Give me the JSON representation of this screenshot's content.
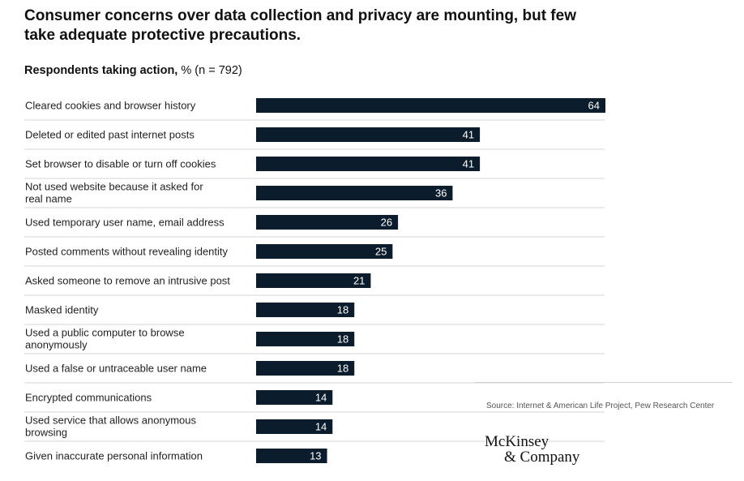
{
  "title": "Consumer concerns over data collection and privacy are mounting, but few take adequate protective precautions.",
  "subtitle_bold": "Respondents taking action,",
  "subtitle_rest": " % (n = 792)",
  "source": "Source: Internet & American Life Project, Pew Research Center",
  "logo": {
    "line1": "McKinsey",
    "line2": "& Company"
  },
  "colors": {
    "bar": "#0b1c2c",
    "rule": "#d6d6d6",
    "value_text": "#ffffff"
  },
  "chart_data": {
    "type": "bar",
    "orientation": "horizontal",
    "title": "Respondents taking action, % (n = 792)",
    "xlabel": "",
    "ylabel": "",
    "xlim": [
      0,
      64
    ],
    "categories": [
      [
        "Cleared cookies and browser history"
      ],
      [
        "Deleted or edited past internet posts"
      ],
      [
        "Set browser to disable or turn off cookies"
      ],
      [
        "Not used website because it asked for",
        "real name"
      ],
      [
        "Used temporary user name, email address"
      ],
      [
        "Posted comments without revealing identity"
      ],
      [
        "Asked someone to remove an intrusive post"
      ],
      [
        "Masked identity"
      ],
      [
        "Used a public computer to browse",
        "anonymously"
      ],
      [
        "Used a false or untraceable user name"
      ],
      [
        "Encrypted communications"
      ],
      [
        "Used service that allows anonymous",
        "browsing"
      ],
      [
        "Given inaccurate personal information"
      ]
    ],
    "values": [
      64,
      41,
      41,
      36,
      26,
      25,
      21,
      18,
      18,
      18,
      14,
      14,
      13
    ]
  }
}
